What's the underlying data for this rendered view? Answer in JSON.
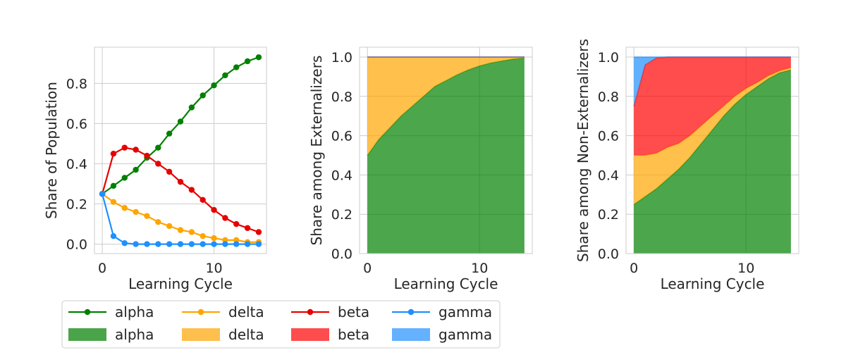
{
  "chart_data": [
    {
      "type": "line",
      "xlabel": "Learning Cycle",
      "ylabel": "Share of Population",
      "xlim": [
        -0.7,
        14.7
      ],
      "ylim": [
        -0.047,
        0.98
      ],
      "xticks": [
        0,
        10
      ],
      "yticks": [
        0.0,
        0.2,
        0.4,
        0.6,
        0.8
      ],
      "grid": true,
      "x": [
        0,
        1,
        2,
        3,
        4,
        5,
        6,
        7,
        8,
        9,
        10,
        11,
        12,
        13,
        14
      ],
      "series": [
        {
          "name": "alpha",
          "color": "#008000",
          "values": [
            0.25,
            0.29,
            0.33,
            0.37,
            0.43,
            0.48,
            0.55,
            0.61,
            0.68,
            0.74,
            0.79,
            0.84,
            0.88,
            0.91,
            0.93
          ]
        },
        {
          "name": "delta",
          "color": "#ffa500",
          "values": [
            0.25,
            0.21,
            0.18,
            0.16,
            0.14,
            0.11,
            0.09,
            0.07,
            0.06,
            0.04,
            0.03,
            0.02,
            0.02,
            0.01,
            0.01
          ]
        },
        {
          "name": "beta",
          "color": "#e60000",
          "values": [
            0.25,
            0.45,
            0.48,
            0.47,
            0.44,
            0.4,
            0.36,
            0.31,
            0.27,
            0.22,
            0.17,
            0.13,
            0.1,
            0.08,
            0.06
          ]
        },
        {
          "name": "gamma",
          "color": "#1e90ff",
          "values": [
            0.25,
            0.04,
            0.005,
            0.0,
            0.0,
            0.0,
            0.0,
            0.0,
            0.0,
            0.0,
            0.0,
            0.0,
            0.0,
            0.0,
            0.0
          ]
        }
      ]
    },
    {
      "type": "area",
      "xlabel": "Learning Cycle",
      "ylabel": "Share among Externalizers",
      "xlim": [
        -0.7,
        14.7
      ],
      "ylim": [
        0.0,
        1.05
      ],
      "xticks": [
        0,
        10
      ],
      "yticks": [
        0.0,
        0.2,
        0.4,
        0.6,
        0.8,
        1.0
      ],
      "grid": true,
      "stacked": true,
      "x": [
        0,
        1,
        2,
        3,
        4,
        5,
        6,
        7,
        8,
        9,
        10,
        11,
        12,
        13,
        14
      ],
      "series": [
        {
          "name": "alpha",
          "color": "#008000",
          "values": [
            0.5,
            0.58,
            0.64,
            0.7,
            0.75,
            0.8,
            0.85,
            0.88,
            0.91,
            0.935,
            0.955,
            0.97,
            0.98,
            0.99,
            0.995
          ]
        },
        {
          "name": "delta",
          "color": "#ffa500",
          "values": [
            0.5,
            0.42,
            0.36,
            0.3,
            0.25,
            0.2,
            0.15,
            0.12,
            0.09,
            0.065,
            0.045,
            0.03,
            0.02,
            0.01,
            0.005
          ]
        },
        {
          "name": "beta",
          "color": "#ff0000",
          "values": [
            0,
            0,
            0,
            0,
            0,
            0,
            0,
            0,
            0,
            0,
            0,
            0,
            0,
            0,
            0
          ]
        },
        {
          "name": "gamma",
          "color": "#1e90ff",
          "values": [
            0,
            0,
            0,
            0,
            0,
            0,
            0,
            0,
            0,
            0,
            0,
            0,
            0,
            0,
            0
          ]
        }
      ]
    },
    {
      "type": "area",
      "xlabel": "Learning Cycle",
      "ylabel": "Share among Non-Externalizers",
      "xlim": [
        -0.7,
        14.7
      ],
      "ylim": [
        0.0,
        1.05
      ],
      "xticks": [
        0,
        10
      ],
      "yticks": [
        0.0,
        0.2,
        0.4,
        0.6,
        0.8,
        1.0
      ],
      "grid": true,
      "stacked": true,
      "x": [
        0,
        1,
        2,
        3,
        4,
        5,
        6,
        7,
        8,
        9,
        10,
        11,
        12,
        13,
        14
      ],
      "series": [
        {
          "name": "alpha",
          "color": "#008000",
          "values": [
            0.25,
            0.29,
            0.33,
            0.38,
            0.43,
            0.49,
            0.56,
            0.63,
            0.7,
            0.76,
            0.81,
            0.85,
            0.89,
            0.92,
            0.935
          ]
        },
        {
          "name": "delta",
          "color": "#ffa500",
          "values": [
            0.25,
            0.21,
            0.18,
            0.16,
            0.13,
            0.11,
            0.09,
            0.07,
            0.05,
            0.04,
            0.03,
            0.02,
            0.015,
            0.01,
            0.01
          ]
        },
        {
          "name": "beta",
          "color": "#ff0000",
          "values": [
            0.25,
            0.46,
            0.485,
            0.46,
            0.44,
            0.4,
            0.35,
            0.3,
            0.25,
            0.2,
            0.16,
            0.13,
            0.095,
            0.07,
            0.055
          ]
        },
        {
          "name": "gamma",
          "color": "#1e90ff",
          "values": [
            0.25,
            0.04,
            0.005,
            0,
            0,
            0,
            0,
            0,
            0,
            0,
            0,
            0,
            0,
            0,
            0
          ]
        }
      ]
    }
  ],
  "legend": {
    "placement": "bottom-left",
    "columns": 4,
    "entries": [
      {
        "label": "alpha",
        "kind": "line",
        "color": "#008000"
      },
      {
        "label": "delta",
        "kind": "line",
        "color": "#ffa500"
      },
      {
        "label": "beta",
        "kind": "line",
        "color": "#e60000"
      },
      {
        "label": "gamma",
        "kind": "line",
        "color": "#1e90ff"
      },
      {
        "label": "alpha",
        "kind": "patch",
        "color": "#4aa44a"
      },
      {
        "label": "delta",
        "kind": "patch",
        "color": "#ffbf4d"
      },
      {
        "label": "beta",
        "kind": "patch",
        "color": "#ff4d4d"
      },
      {
        "label": "gamma",
        "kind": "patch",
        "color": "#63b1ff"
      }
    ]
  }
}
